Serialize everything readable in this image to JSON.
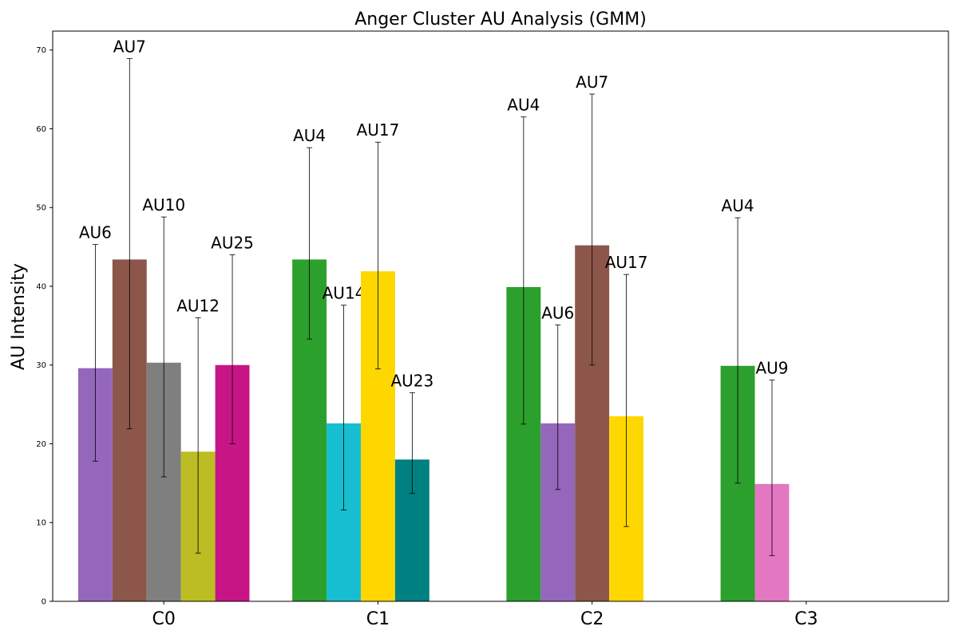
{
  "chart_data": {
    "type": "bar",
    "title": "Anger Cluster AU Analysis (GMM)",
    "xlabel": "",
    "ylabel": "AU Intensity",
    "ylim": [
      0,
      72.4
    ],
    "yticks": [
      0,
      10,
      20,
      30,
      40,
      50,
      60,
      70
    ],
    "grid": false,
    "legend": "none",
    "categories": [
      "C0",
      "C1",
      "C2",
      "C3"
    ],
    "colors": {
      "AU4": "#2ca02c",
      "AU6": "#9467bd",
      "AU7": "#8c564b",
      "AU9": "#e377c2",
      "AU10": "#7f7f7f",
      "AU12": "#bcbd22",
      "AU14": "#17becf",
      "AU17": "#ffd700",
      "AU23": "#008080",
      "AU25": "#c71585"
    },
    "groups": [
      {
        "category": "C0",
        "bars": [
          {
            "label": "AU6",
            "value": 29.6,
            "err_low": 17.8,
            "err_high": 45.3
          },
          {
            "label": "AU7",
            "value": 43.4,
            "err_low": 21.9,
            "err_high": 68.9
          },
          {
            "label": "AU10",
            "value": 30.3,
            "err_low": 15.8,
            "err_high": 48.8
          },
          {
            "label": "AU12",
            "value": 19.0,
            "err_low": 6.1,
            "err_high": 36.0
          },
          {
            "label": "AU25",
            "value": 30.0,
            "err_low": 20.0,
            "err_high": 44.0
          }
        ]
      },
      {
        "category": "C1",
        "bars": [
          {
            "label": "AU4",
            "value": 43.4,
            "err_low": 33.3,
            "err_high": 57.6
          },
          {
            "label": "AU14",
            "value": 22.6,
            "err_low": 11.6,
            "err_high": 37.6
          },
          {
            "label": "AU17",
            "value": 41.9,
            "err_low": 29.5,
            "err_high": 58.3
          },
          {
            "label": "AU23",
            "value": 18.0,
            "err_low": 13.7,
            "err_high": 26.5
          }
        ]
      },
      {
        "category": "C2",
        "bars": [
          {
            "label": "AU4",
            "value": 39.9,
            "err_low": 22.5,
            "err_high": 61.5
          },
          {
            "label": "AU6",
            "value": 22.6,
            "err_low": 14.2,
            "err_high": 35.1
          },
          {
            "label": "AU7",
            "value": 45.2,
            "err_low": 30.0,
            "err_high": 64.4
          },
          {
            "label": "AU17",
            "value": 23.5,
            "err_low": 9.5,
            "err_high": 41.5
          }
        ]
      },
      {
        "category": "C3",
        "bars": [
          {
            "label": "AU4",
            "value": 29.9,
            "err_low": 15.0,
            "err_high": 48.7
          },
          {
            "label": "AU9",
            "value": 14.9,
            "err_low": 5.8,
            "err_high": 28.1
          }
        ]
      }
    ]
  }
}
